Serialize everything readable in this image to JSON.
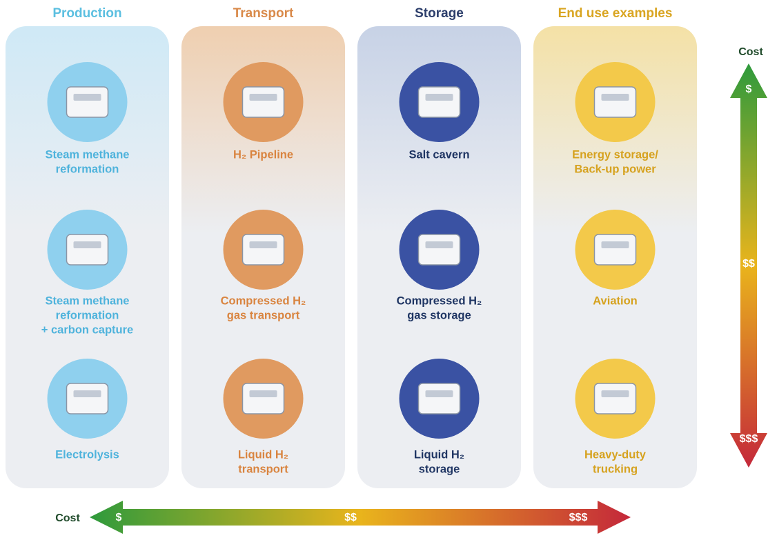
{
  "columns": [
    {
      "title": "Production",
      "items": [
        {
          "label": [
            "Steam methane",
            "reformation"
          ]
        },
        {
          "label": [
            "Steam methane",
            "reformation",
            "+ carbon capture"
          ]
        },
        {
          "label": [
            "Electrolysis"
          ]
        }
      ]
    },
    {
      "title": "Transport",
      "items": [
        {
          "label": [
            "H₂ Pipeline"
          ]
        },
        {
          "label": [
            "Compressed H₂",
            "gas transport"
          ]
        },
        {
          "label": [
            "Liquid H₂",
            "transport"
          ]
        }
      ]
    },
    {
      "title": "Storage",
      "items": [
        {
          "label": [
            "Salt cavern"
          ]
        },
        {
          "label": [
            "Compressed H₂",
            "gas storage"
          ]
        },
        {
          "label": [
            "Liquid H₂",
            "storage"
          ]
        }
      ]
    },
    {
      "title": "End use examples",
      "items": [
        {
          "label": [
            "Energy storage/",
            "Back-up power"
          ]
        },
        {
          "label": [
            "Aviation"
          ]
        },
        {
          "label": [
            "Heavy-duty",
            "trucking"
          ]
        }
      ]
    }
  ],
  "cost_vertical": {
    "label": "Cost",
    "marks": [
      "$",
      "$$",
      "$$$"
    ]
  },
  "cost_horizontal": {
    "label": "Cost",
    "marks": [
      "$",
      "$$",
      "$$$"
    ]
  }
}
